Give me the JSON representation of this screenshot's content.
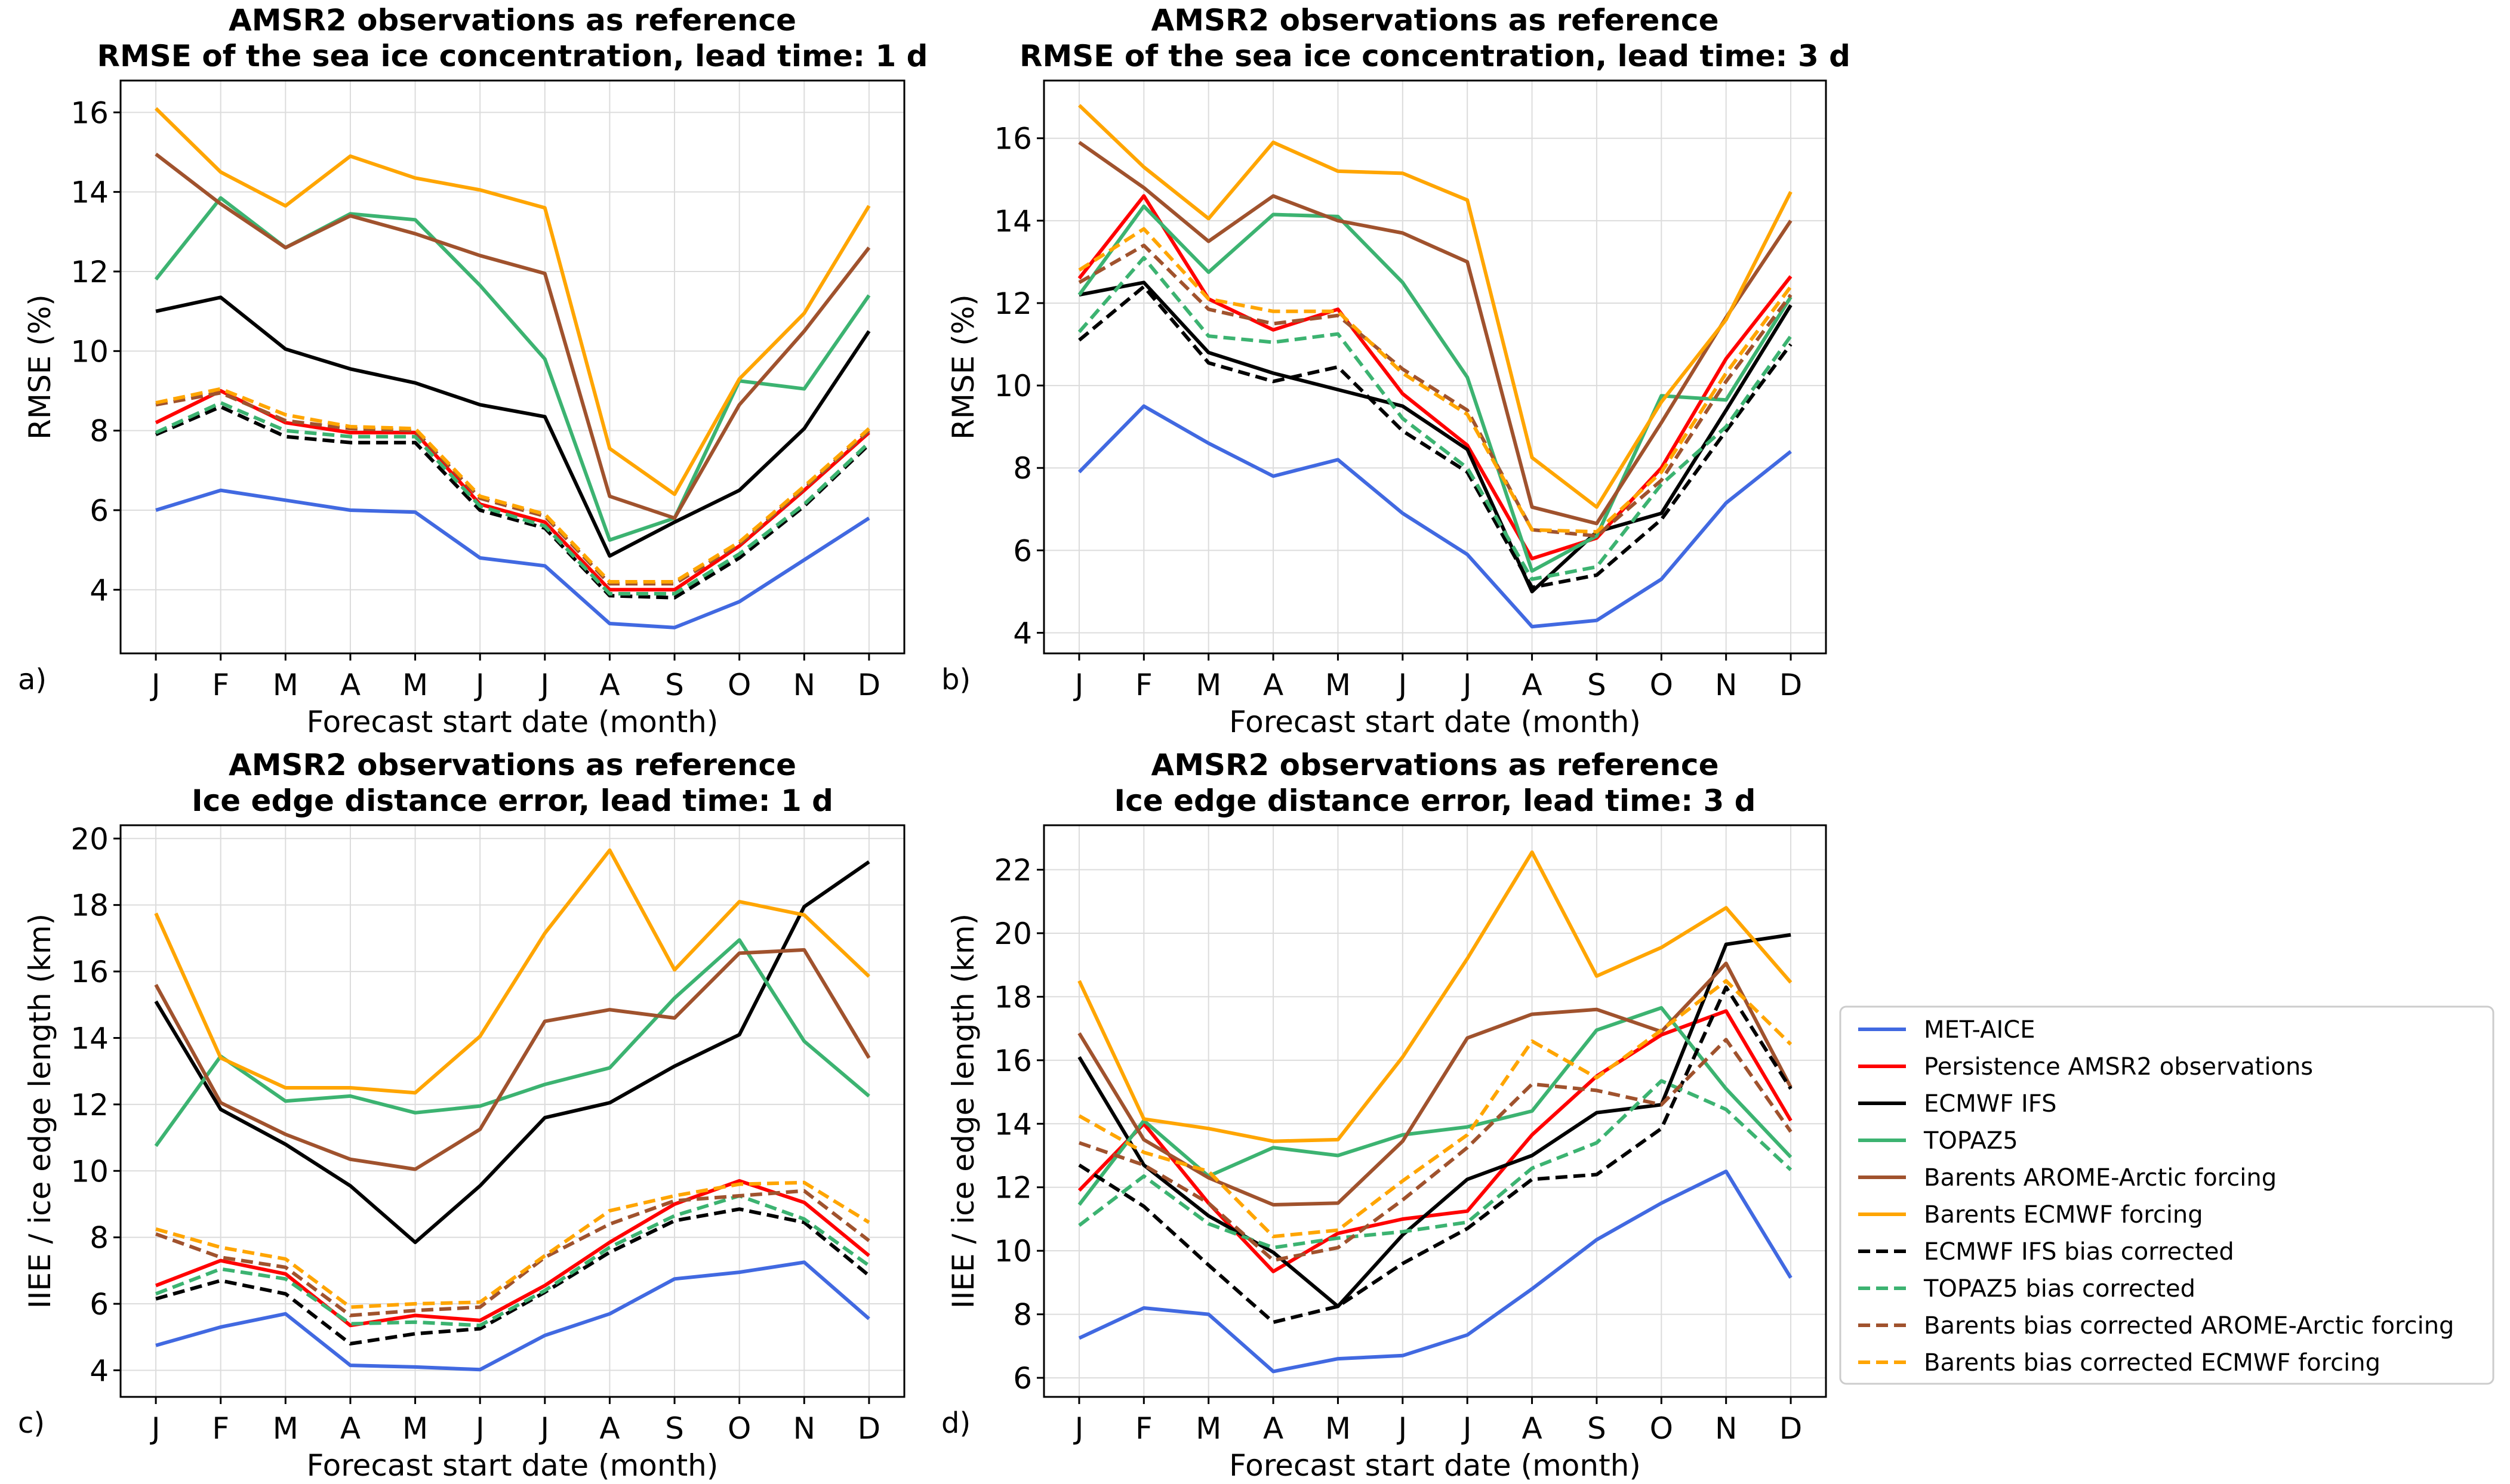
{
  "legend": {
    "placement": "right of bottom-right panel",
    "entries": [
      {
        "name": "MET-AICE",
        "color": "#4169e1",
        "style": "solid"
      },
      {
        "name": "Persistence AMSR2 observations",
        "color": "#ff0000",
        "style": "solid"
      },
      {
        "name": "ECMWF IFS",
        "color": "#000000",
        "style": "solid"
      },
      {
        "name": "TOPAZ5",
        "color": "#3cb371",
        "style": "solid"
      },
      {
        "name": "Barents AROME-Arctic forcing",
        "color": "#a0522d",
        "style": "solid"
      },
      {
        "name": "Barents ECMWF forcing",
        "color": "#ffa500",
        "style": "solid"
      },
      {
        "name": "ECMWF IFS bias corrected",
        "color": "#000000",
        "style": "dashed"
      },
      {
        "name": "TOPAZ5 bias corrected",
        "color": "#3cb371",
        "style": "dashed"
      },
      {
        "name": "Barents bias corrected AROME-Arctic forcing",
        "color": "#a0522d",
        "style": "dashed"
      },
      {
        "name": "Barents bias corrected ECMWF forcing",
        "color": "#ffa500",
        "style": "dashed"
      }
    ]
  },
  "chart_data": [
    {
      "type": "line",
      "panel_label": "a)",
      "title": [
        "AMSR2 observations as reference",
        "RMSE of the sea ice concentration, lead time: 1 d"
      ],
      "xlabel": "Forecast start date (month)",
      "ylabel": "RMSE (%)",
      "categories": [
        "J",
        "F",
        "M",
        "A",
        "M",
        "J",
        "J",
        "A",
        "S",
        "O",
        "N",
        "D"
      ],
      "ylim": [
        2.4,
        16.8
      ],
      "yticks": [
        4,
        6,
        8,
        10,
        12,
        14,
        16
      ],
      "grid": true,
      "series": [
        {
          "name": "MET-AICE",
          "values": [
            6.0,
            6.5,
            6.25,
            6.0,
            5.95,
            4.8,
            4.6,
            3.15,
            3.05,
            3.7,
            4.75,
            5.8
          ]
        },
        {
          "name": "Persistence AMSR2 observations",
          "values": [
            8.2,
            9.0,
            8.2,
            7.95,
            7.95,
            6.15,
            5.7,
            4.0,
            4.0,
            5.1,
            6.5,
            7.95
          ]
        },
        {
          "name": "ECMWF IFS",
          "values": [
            11.0,
            11.35,
            10.05,
            9.55,
            9.2,
            8.65,
            8.35,
            4.85,
            5.7,
            6.5,
            8.05,
            10.5
          ]
        },
        {
          "name": "TOPAZ5",
          "values": [
            11.8,
            13.85,
            12.6,
            13.45,
            13.3,
            11.65,
            9.8,
            5.25,
            5.8,
            9.25,
            9.05,
            11.4
          ]
        },
        {
          "name": "Barents AROME-Arctic forcing",
          "values": [
            14.95,
            13.7,
            12.6,
            13.4,
            12.95,
            12.4,
            11.95,
            6.35,
            5.8,
            8.65,
            10.5,
            12.6
          ]
        },
        {
          "name": "Barents ECMWF forcing",
          "values": [
            16.1,
            14.5,
            13.65,
            14.9,
            14.35,
            14.05,
            13.6,
            7.55,
            6.4,
            9.3,
            10.95,
            13.65
          ]
        },
        {
          "name": "ECMWF IFS bias corrected",
          "values": [
            7.9,
            8.6,
            7.85,
            7.7,
            7.7,
            6.0,
            5.55,
            3.85,
            3.8,
            4.8,
            6.1,
            7.65
          ]
        },
        {
          "name": "TOPAZ5 bias corrected",
          "values": [
            7.95,
            8.7,
            8.0,
            7.85,
            7.85,
            6.1,
            5.6,
            3.9,
            3.9,
            4.9,
            6.15,
            7.7
          ]
        },
        {
          "name": "Barents bias corrected AROME-Arctic forcing",
          "values": [
            8.65,
            8.95,
            8.25,
            8.05,
            8.0,
            6.3,
            5.85,
            4.15,
            4.15,
            5.15,
            6.55,
            8.0
          ]
        },
        {
          "name": "Barents bias corrected ECMWF forcing",
          "values": [
            8.7,
            9.05,
            8.4,
            8.1,
            8.05,
            6.35,
            5.9,
            4.2,
            4.2,
            5.2,
            6.6,
            8.05
          ]
        }
      ]
    },
    {
      "type": "line",
      "panel_label": "b)",
      "title": [
        "AMSR2 observations as reference",
        "RMSE of the sea ice concentration, lead time: 3 d"
      ],
      "xlabel": "Forecast start date (month)",
      "ylabel": "RMSE (%)",
      "categories": [
        "J",
        "F",
        "M",
        "A",
        "M",
        "J",
        "J",
        "A",
        "S",
        "O",
        "N",
        "D"
      ],
      "ylim": [
        3.5,
        17.4
      ],
      "yticks": [
        4,
        6,
        8,
        10,
        12,
        14,
        16
      ],
      "grid": true,
      "series": [
        {
          "name": "MET-AICE",
          "values": [
            7.9,
            9.5,
            8.6,
            7.8,
            8.2,
            6.9,
            5.9,
            4.15,
            4.3,
            5.3,
            7.15,
            8.4
          ]
        },
        {
          "name": "Persistence AMSR2 observations",
          "values": [
            12.6,
            14.6,
            12.1,
            11.35,
            11.85,
            9.8,
            8.55,
            5.8,
            6.3,
            8.0,
            10.65,
            12.65
          ]
        },
        {
          "name": "ECMWF IFS",
          "values": [
            12.2,
            12.5,
            10.8,
            10.3,
            9.9,
            9.5,
            8.45,
            5.0,
            6.45,
            6.9,
            9.4,
            11.95
          ]
        },
        {
          "name": "TOPAZ5",
          "values": [
            12.2,
            14.35,
            12.75,
            14.15,
            14.1,
            12.5,
            10.2,
            5.5,
            6.35,
            9.75,
            9.65,
            12.15
          ]
        },
        {
          "name": "Barents AROME-Arctic forcing",
          "values": [
            15.9,
            14.8,
            13.5,
            14.6,
            14.0,
            13.7,
            13.0,
            7.05,
            6.65,
            9.1,
            11.65,
            14.0
          ]
        },
        {
          "name": "Barents ECMWF forcing",
          "values": [
            16.8,
            15.3,
            14.05,
            15.9,
            15.2,
            15.15,
            14.5,
            8.25,
            7.05,
            9.6,
            11.6,
            14.7
          ]
        },
        {
          "name": "ECMWF IFS bias corrected",
          "values": [
            11.1,
            12.4,
            10.55,
            10.1,
            10.45,
            8.9,
            7.9,
            5.1,
            5.4,
            6.75,
            8.9,
            11.0
          ]
        },
        {
          "name": "TOPAZ5 bias corrected",
          "values": [
            11.3,
            13.1,
            11.2,
            11.05,
            11.25,
            9.2,
            8.0,
            5.3,
            5.6,
            7.6,
            9.0,
            11.2
          ]
        },
        {
          "name": "Barents bias corrected AROME-Arctic forcing",
          "values": [
            12.5,
            13.4,
            11.85,
            11.5,
            11.7,
            10.4,
            9.4,
            6.5,
            6.35,
            7.7,
            10.1,
            12.2
          ]
        },
        {
          "name": "Barents bias corrected ECMWF forcing",
          "values": [
            12.8,
            13.8,
            12.1,
            11.8,
            11.8,
            10.3,
            9.3,
            6.5,
            6.45,
            7.9,
            10.3,
            12.4
          ]
        }
      ]
    },
    {
      "type": "line",
      "panel_label": "c)",
      "title": [
        "AMSR2 observations as reference",
        "Ice edge distance error, lead time: 1 d"
      ],
      "xlabel": "Forecast start date (month)",
      "ylabel": "IIEE / ice edge length (km)",
      "categories": [
        "J",
        "F",
        "M",
        "A",
        "M",
        "J",
        "J",
        "A",
        "S",
        "O",
        "N",
        "D"
      ],
      "ylim": [
        3.2,
        20.4
      ],
      "yticks": [
        4,
        6,
        8,
        10,
        12,
        14,
        16,
        18,
        20
      ],
      "grid": true,
      "series": [
        {
          "name": "MET-AICE",
          "values": [
            4.75,
            5.3,
            5.7,
            4.15,
            4.1,
            4.02,
            5.05,
            5.7,
            6.75,
            6.95,
            7.25,
            5.55
          ]
        },
        {
          "name": "Persistence AMSR2 observations",
          "values": [
            6.55,
            7.3,
            6.9,
            5.35,
            5.65,
            5.5,
            6.55,
            7.85,
            9.0,
            9.7,
            9.05,
            7.45
          ]
        },
        {
          "name": "ECMWF IFS",
          "values": [
            15.1,
            11.85,
            10.8,
            9.55,
            7.85,
            9.55,
            11.6,
            12.05,
            13.15,
            14.1,
            17.95,
            19.3
          ]
        },
        {
          "name": "TOPAZ5",
          "values": [
            10.75,
            13.45,
            12.1,
            12.25,
            11.75,
            11.95,
            12.6,
            13.1,
            15.2,
            16.95,
            13.9,
            12.25
          ]
        },
        {
          "name": "Barents AROME-Arctic forcing",
          "values": [
            15.6,
            12.05,
            11.1,
            10.35,
            10.05,
            11.25,
            14.5,
            14.85,
            14.6,
            16.55,
            16.65,
            13.4
          ]
        },
        {
          "name": "Barents ECMWF forcing",
          "values": [
            17.75,
            13.4,
            12.5,
            12.5,
            12.35,
            14.05,
            17.15,
            19.65,
            16.05,
            18.1,
            17.7,
            15.85
          ]
        },
        {
          "name": "ECMWF IFS bias corrected",
          "values": [
            6.15,
            6.7,
            6.3,
            4.8,
            5.1,
            5.25,
            6.35,
            7.55,
            8.5,
            8.85,
            8.45,
            6.85
          ]
        },
        {
          "name": "TOPAZ5 bias corrected",
          "values": [
            6.3,
            7.05,
            6.75,
            5.4,
            5.45,
            5.35,
            6.4,
            7.7,
            8.65,
            9.25,
            8.55,
            7.15
          ]
        },
        {
          "name": "Barents bias corrected AROME-Arctic forcing",
          "values": [
            8.1,
            7.4,
            7.1,
            5.65,
            5.8,
            5.9,
            7.4,
            8.4,
            9.1,
            9.25,
            9.4,
            7.9
          ]
        },
        {
          "name": "Barents bias corrected ECMWF forcing",
          "values": [
            8.25,
            7.7,
            7.35,
            5.9,
            6.0,
            6.05,
            7.45,
            8.8,
            9.25,
            9.6,
            9.65,
            8.45
          ]
        }
      ]
    },
    {
      "type": "line",
      "panel_label": "d)",
      "title": [
        "AMSR2 observations as reference",
        "Ice edge distance error, lead time: 3 d"
      ],
      "xlabel": "Forecast start date (month)",
      "ylabel": "IIEE / ice edge length (km)",
      "categories": [
        "J",
        "F",
        "M",
        "A",
        "M",
        "J",
        "J",
        "A",
        "S",
        "O",
        "N",
        "D"
      ],
      "ylim": [
        5.4,
        23.4
      ],
      "yticks": [
        6,
        8,
        10,
        12,
        14,
        16,
        18,
        20,
        22
      ],
      "grid": true,
      "series": [
        {
          "name": "MET-AICE",
          "values": [
            7.25,
            8.2,
            8.0,
            6.2,
            6.6,
            6.7,
            7.35,
            8.8,
            10.35,
            11.5,
            12.5,
            9.15
          ]
        },
        {
          "name": "Persistence AMSR2 observations",
          "values": [
            11.9,
            14.0,
            11.5,
            9.35,
            10.55,
            11.0,
            11.25,
            13.65,
            15.5,
            16.8,
            17.55,
            14.1
          ]
        },
        {
          "name": "ECMWF IFS",
          "values": [
            16.1,
            12.7,
            11.1,
            9.95,
            8.25,
            10.5,
            12.25,
            13.0,
            14.35,
            14.6,
            19.65,
            19.95
          ]
        },
        {
          "name": "TOPAZ5",
          "values": [
            11.45,
            14.1,
            12.35,
            13.25,
            13.0,
            13.65,
            13.9,
            14.4,
            16.95,
            17.65,
            15.1,
            12.95
          ]
        },
        {
          "name": "Barents AROME-Arctic forcing",
          "values": [
            16.85,
            13.5,
            12.3,
            11.45,
            11.5,
            13.45,
            16.7,
            17.45,
            17.6,
            16.9,
            19.05,
            15.15
          ]
        },
        {
          "name": "Barents ECMWF forcing",
          "values": [
            18.5,
            14.15,
            13.85,
            13.45,
            13.5,
            16.1,
            19.2,
            22.55,
            18.65,
            19.55,
            20.8,
            18.45
          ]
        },
        {
          "name": "ECMWF IFS bias corrected",
          "values": [
            12.7,
            11.4,
            9.55,
            7.75,
            8.25,
            9.6,
            10.7,
            12.25,
            12.4,
            13.85,
            18.3,
            15.1
          ]
        },
        {
          "name": "TOPAZ5 bias corrected",
          "values": [
            10.8,
            12.35,
            10.85,
            10.1,
            10.4,
            10.6,
            10.9,
            12.6,
            13.4,
            15.35,
            14.45,
            12.55
          ]
        },
        {
          "name": "Barents bias corrected AROME-Arctic forcing",
          "values": [
            13.4,
            12.7,
            11.5,
            9.7,
            10.1,
            11.6,
            13.25,
            15.25,
            15.05,
            14.6,
            16.65,
            13.75
          ]
        },
        {
          "name": "Barents bias corrected ECMWF forcing",
          "values": [
            14.25,
            13.1,
            12.5,
            10.45,
            10.65,
            12.2,
            13.65,
            16.6,
            15.45,
            16.95,
            18.5,
            16.5
          ]
        }
      ]
    }
  ]
}
